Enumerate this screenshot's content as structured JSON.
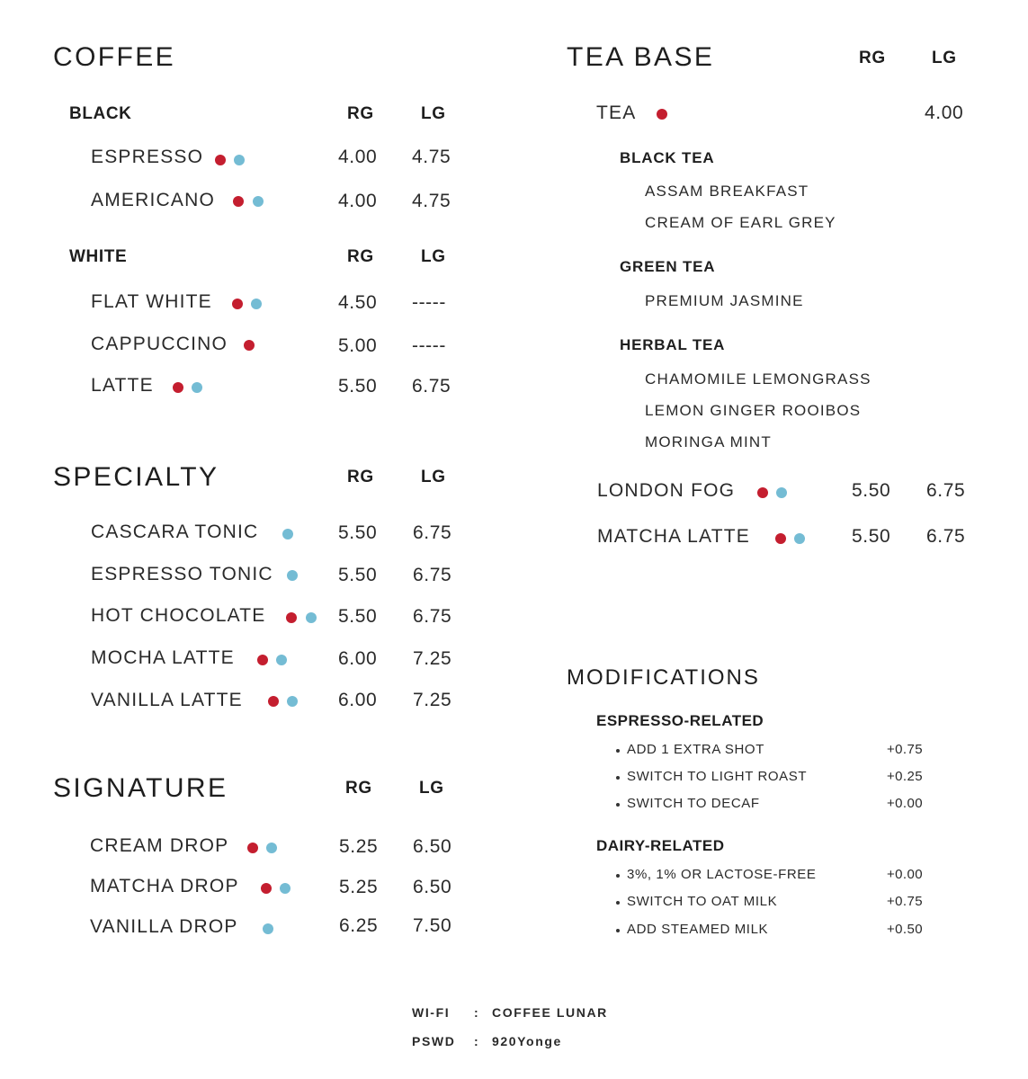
{
  "colors": {
    "hot_dot": "#c41e2f",
    "cold_dot": "#74bcd4"
  },
  "icons": {
    "hot": "red-dot-icon",
    "cold": "blue-dot-icon"
  },
  "coffee": {
    "title": "COFFEE",
    "black": {
      "label": "BLACK",
      "rg": "RG",
      "lg": "LG",
      "items": [
        {
          "name": "ESPRESSO",
          "rg": "4.00",
          "lg": "4.75"
        },
        {
          "name": "AMERICANO",
          "rg": "4.00",
          "lg": "4.75"
        }
      ]
    },
    "white": {
      "label": "WHITE",
      "rg": "RG",
      "lg": "LG",
      "items": [
        {
          "name": "FLAT WHITE",
          "rg": "4.50",
          "lg": "-----"
        },
        {
          "name": "CAPPUCCINO",
          "rg": "5.00",
          "lg": "-----"
        },
        {
          "name": "LATTE",
          "rg": "5.50",
          "lg": "6.75"
        }
      ]
    }
  },
  "specialty": {
    "title": "SPECIALTY",
    "rg": "RG",
    "lg": "LG",
    "items": [
      {
        "name": "CASCARA TONIC",
        "rg": "5.50",
        "lg": "6.75"
      },
      {
        "name": "ESPRESSO TONIC",
        "rg": "5.50",
        "lg": "6.75"
      },
      {
        "name": "HOT CHOCOLATE",
        "rg": "5.50",
        "lg": "6.75"
      },
      {
        "name": "MOCHA LATTE",
        "rg": "6.00",
        "lg": "7.25"
      },
      {
        "name": "VANILLA LATTE",
        "rg": "6.00",
        "lg": "7.25"
      }
    ]
  },
  "signature": {
    "title": "SIGNATURE",
    "rg": "RG",
    "lg": "LG",
    "items": [
      {
        "name": "CREAM DROP",
        "rg": "5.25",
        "lg": "6.50"
      },
      {
        "name": "MATCHA DROP",
        "rg": "5.25",
        "lg": "6.50"
      },
      {
        "name": "VANILLA DROP",
        "rg": "6.25",
        "lg": "7.50"
      }
    ]
  },
  "tea": {
    "title": "TEA BASE",
    "rg": "RG",
    "lg": "LG",
    "tea_name": "TEA",
    "tea_price": "4.00",
    "black_label": "BLACK TEA",
    "black_items": [
      "ASSAM BREAKFAST",
      "CREAM OF EARL GREY"
    ],
    "green_label": "GREEN TEA",
    "green_items": [
      "PREMIUM JASMINE"
    ],
    "herbal_label": "HERBAL TEA",
    "herbal_items": [
      "CHAMOMILE LEMONGRASS",
      "LEMON GINGER ROOIBOS",
      "MORINGA MINT"
    ],
    "drinks": [
      {
        "name": "LONDON FOG",
        "rg": "5.50",
        "lg": "6.75"
      },
      {
        "name": "MATCHA LATTE",
        "rg": "5.50",
        "lg": "6.75"
      }
    ]
  },
  "modifications": {
    "title": "MODIFICATIONS",
    "espresso_label": "ESPRESSO-RELATED",
    "espresso_items": [
      {
        "name": "ADD 1 EXTRA SHOT",
        "price": "+0.75"
      },
      {
        "name": "SWITCH TO LIGHT ROAST",
        "price": "+0.25"
      },
      {
        "name": "SWITCH TO DECAF",
        "price": "+0.00"
      }
    ],
    "dairy_label": "DAIRY-RELATED",
    "dairy_items": [
      {
        "name": "3%, 1% OR LACTOSE-FREE",
        "price": "+0.00"
      },
      {
        "name": "SWITCH TO OAT MILK",
        "price": "+0.75"
      },
      {
        "name": "ADD STEAMED MILK",
        "price": "+0.50"
      }
    ]
  },
  "wifi": {
    "wifi_label": "WI-FI",
    "sep": ":",
    "wifi_value": "COFFEE LUNAR",
    "pswd_label": "PSWD",
    "pswd_value": "920Yonge"
  }
}
